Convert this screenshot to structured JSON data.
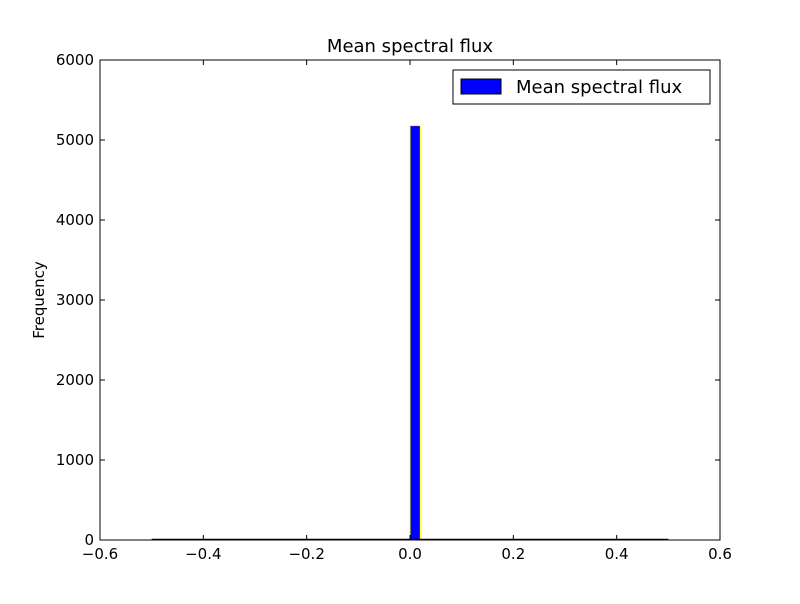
{
  "chart_data": {
    "type": "bar",
    "title": "Mean spectral flux",
    "xlabel": "",
    "ylabel": "Frequency",
    "xlim": [
      -0.6,
      0.6
    ],
    "ylim": [
      0,
      6000
    ],
    "grid": false,
    "legend_position": "top-right",
    "x_ticks": [
      -0.6,
      -0.4,
      -0.2,
      0.0,
      0.2,
      0.4,
      0.6
    ],
    "x_tick_labels": [
      "−0.6",
      "−0.4",
      "−0.2",
      "0.0",
      "0.2",
      "0.4",
      "0.6"
    ],
    "y_ticks": [
      0,
      1000,
      2000,
      3000,
      4000,
      5000,
      6000
    ],
    "y_tick_labels": [
      "0",
      "1000",
      "2000",
      "3000",
      "4000",
      "5000",
      "6000"
    ],
    "bin_range": [
      -0.5,
      0.5
    ],
    "bin_count": 50,
    "series": [
      {
        "name": "Mean spectral flux",
        "color": "#0000ff",
        "edge_color": "#ffff00",
        "bins": [
          {
            "x0": 0.0,
            "x1": 0.02,
            "value": 5180
          }
        ]
      }
    ]
  }
}
